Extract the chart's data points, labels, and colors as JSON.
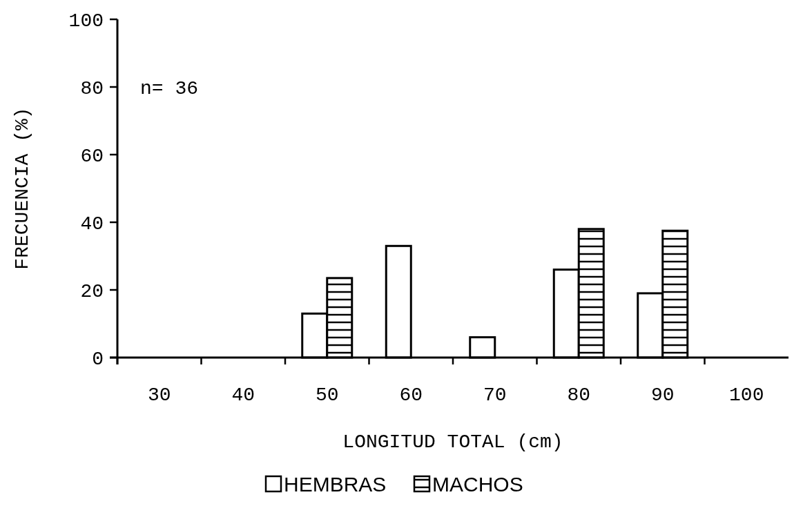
{
  "chart_data": {
    "type": "bar",
    "xlabel": "LONGITUD TOTAL (cm)",
    "ylabel": "FRECUENCIA (%)",
    "annotations": [
      "n= 36"
    ],
    "categories": [
      "30",
      "40",
      "50",
      "60",
      "70",
      "80",
      "90",
      "100"
    ],
    "series": [
      {
        "name": "HEMBRAS",
        "color": "#ffffff",
        "values": [
          0,
          0,
          13,
          33,
          6,
          26,
          19,
          0
        ]
      },
      {
        "name": "MACHOS",
        "color": "#000000",
        "values": [
          0,
          0,
          23.5,
          0,
          0,
          38,
          37.5,
          0
        ]
      }
    ],
    "ylim": [
      0,
      100
    ],
    "yticks": [
      0,
      20,
      40,
      60,
      80,
      100
    ],
    "grid": false,
    "legend": "bottom"
  }
}
